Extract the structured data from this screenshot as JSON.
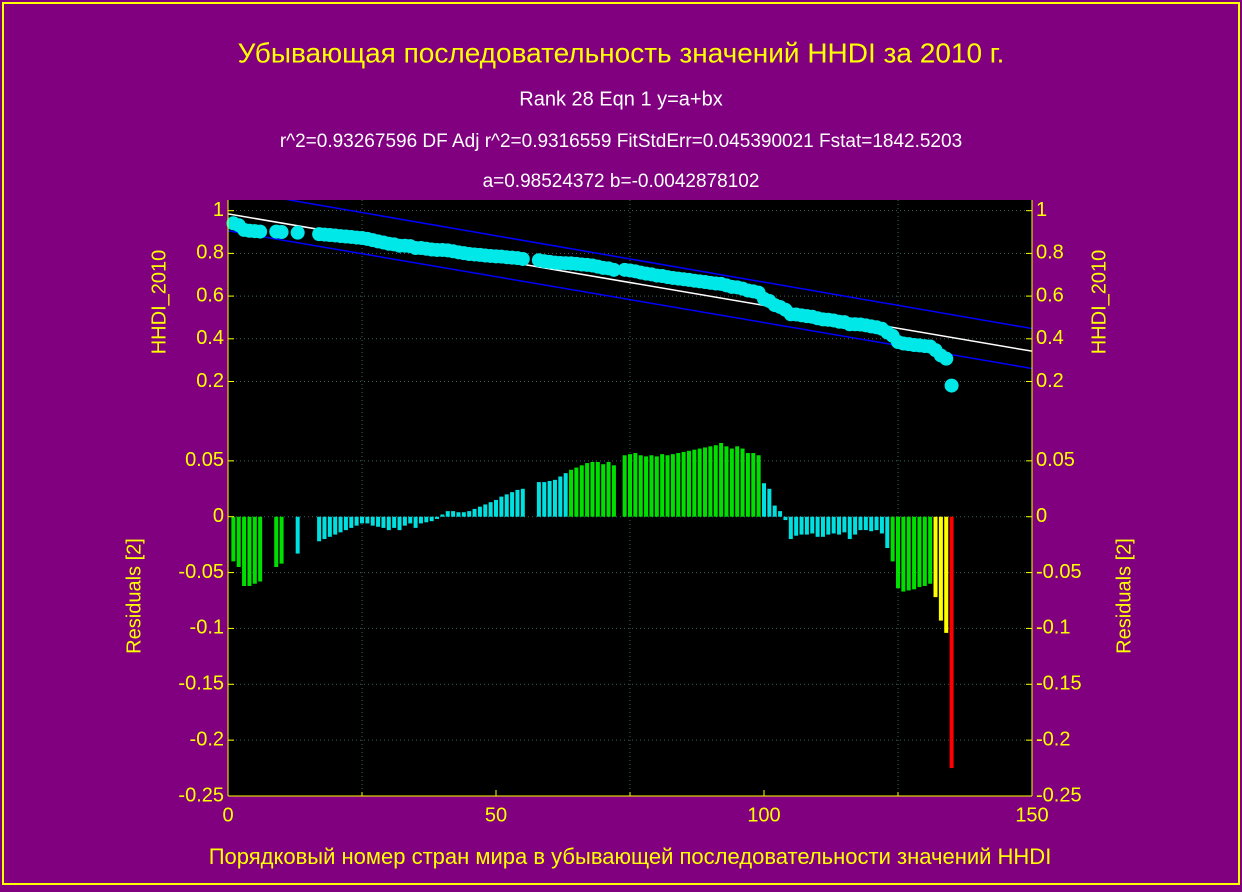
{
  "chart_data": [
    {
      "type": "scatter",
      "title": "Убывающая последовательность значений HHDI за 2010 г.",
      "subtitles": [
        "Rank 28  Eqn 1  y=a+bx",
        "r^2=0.93267596  DF Adj r^2=0.9316559  FitStdErr=0.045390021  Fstat=1842.5203",
        "a=0.98524372 b=-0.0042878102"
      ],
      "x_label": "Порядковый номер  стран мира в убывающей последовательности значений HHDI",
      "y_label": "HHDI_2010",
      "color": "#00e8e8",
      "xlim": [
        0,
        150
      ],
      "ylim": [
        0.09,
        1.05
      ],
      "yticks": [
        0.2,
        0.4,
        0.6,
        0.8,
        1
      ],
      "fit_line": {
        "color": "#ffffff",
        "x": [
          0,
          150
        ],
        "y": [
          0.985,
          0.342
        ]
      },
      "bands": {
        "color": "#0000ff",
        "upper": {
          "x": [
            0,
            150
          ],
          "y": [
            1.1,
            0.448
          ]
        },
        "lower": {
          "x": [
            0,
            150
          ],
          "y": [
            0.906,
            0.261
          ]
        }
      },
      "x": [
        1,
        2,
        3,
        4,
        5,
        6,
        9,
        10,
        13,
        17,
        18,
        19,
        20,
        21,
        22,
        23,
        24,
        25,
        26,
        27,
        28,
        29,
        30,
        31,
        32,
        33,
        34,
        35,
        36,
        37,
        38,
        39,
        40,
        41,
        42,
        43,
        44,
        45,
        46,
        47,
        48,
        49,
        50,
        51,
        52,
        53,
        54,
        55,
        58,
        59,
        60,
        61,
        62,
        63,
        64,
        65,
        66,
        67,
        68,
        69,
        70,
        71,
        72,
        74,
        75,
        76,
        77,
        78,
        79,
        80,
        81,
        82,
        83,
        84,
        85,
        86,
        87,
        88,
        89,
        90,
        91,
        92,
        93,
        94,
        95,
        96,
        97,
        98,
        99,
        100,
        101,
        102,
        103,
        104,
        105,
        106,
        107,
        108,
        109,
        110,
        111,
        112,
        113,
        114,
        115,
        116,
        117,
        118,
        119,
        120,
        121,
        122,
        123,
        124,
        125,
        126,
        127,
        128,
        129,
        130,
        131,
        132,
        133,
        134,
        135
      ],
      "y": [
        0.941,
        0.932,
        0.91,
        0.906,
        0.904,
        0.902,
        0.902,
        0.9,
        0.897,
        0.89,
        0.888,
        0.886,
        0.884,
        0.881,
        0.879,
        0.877,
        0.874,
        0.872,
        0.868,
        0.862,
        0.856,
        0.851,
        0.845,
        0.842,
        0.836,
        0.836,
        0.834,
        0.825,
        0.825,
        0.822,
        0.818,
        0.816,
        0.816,
        0.814,
        0.81,
        0.805,
        0.801,
        0.797,
        0.795,
        0.793,
        0.79,
        0.788,
        0.786,
        0.785,
        0.782,
        0.78,
        0.778,
        0.774,
        0.768,
        0.763,
        0.76,
        0.757,
        0.755,
        0.754,
        0.753,
        0.751,
        0.748,
        0.746,
        0.743,
        0.738,
        0.732,
        0.73,
        0.723,
        0.723,
        0.72,
        0.716,
        0.71,
        0.705,
        0.702,
        0.696,
        0.694,
        0.689,
        0.685,
        0.682,
        0.679,
        0.676,
        0.672,
        0.669,
        0.666,
        0.662,
        0.659,
        0.657,
        0.65,
        0.643,
        0.641,
        0.635,
        0.626,
        0.622,
        0.616,
        0.587,
        0.577,
        0.558,
        0.549,
        0.536,
        0.515,
        0.514,
        0.51,
        0.506,
        0.503,
        0.496,
        0.491,
        0.489,
        0.486,
        0.48,
        0.478,
        0.468,
        0.468,
        0.467,
        0.463,
        0.458,
        0.454,
        0.447,
        0.43,
        0.414,
        0.385,
        0.378,
        0.375,
        0.371,
        0.369,
        0.366,
        0.364,
        0.347,
        0.322,
        0.307,
        0.181
      ]
    },
    {
      "type": "bar",
      "y_label": "Residuals [2]",
      "xlim": [
        0,
        150
      ],
      "xticks": [
        0,
        50,
        100,
        150
      ],
      "xminor": [
        25,
        75,
        125
      ],
      "ylim": [
        -0.25,
        0.1
      ],
      "yticks": [
        0.05,
        0,
        -0.05,
        -0.1,
        -0.15,
        -0.2,
        -0.25
      ],
      "x": [
        1,
        2,
        3,
        4,
        5,
        6,
        9,
        10,
        13,
        17,
        18,
        19,
        20,
        21,
        22,
        23,
        24,
        25,
        26,
        27,
        28,
        29,
        30,
        31,
        32,
        33,
        34,
        35,
        36,
        37,
        38,
        39,
        40,
        41,
        42,
        43,
        44,
        45,
        46,
        47,
        48,
        49,
        50,
        51,
        52,
        53,
        54,
        55,
        58,
        59,
        60,
        61,
        62,
        63,
        64,
        65,
        66,
        67,
        68,
        69,
        70,
        71,
        72,
        74,
        75,
        76,
        77,
        78,
        79,
        80,
        81,
        82,
        83,
        84,
        85,
        86,
        87,
        88,
        89,
        90,
        91,
        92,
        93,
        94,
        95,
        96,
        97,
        98,
        99,
        100,
        101,
        102,
        103,
        104,
        105,
        106,
        107,
        108,
        109,
        110,
        111,
        112,
        113,
        114,
        115,
        116,
        117,
        118,
        119,
        120,
        121,
        122,
        123,
        124,
        125,
        126,
        127,
        128,
        129,
        130,
        131,
        132,
        133,
        134,
        135
      ],
      "values": [
        -0.04,
        -0.045,
        -0.062,
        -0.062,
        -0.06,
        -0.058,
        -0.045,
        -0.042,
        -0.033,
        -0.022,
        -0.02,
        -0.018,
        -0.016,
        -0.014,
        -0.012,
        -0.01,
        -0.008,
        -0.006,
        -0.006,
        -0.008,
        -0.009,
        -0.01,
        -0.012,
        -0.01,
        -0.012,
        -0.008,
        -0.006,
        -0.01,
        -0.006,
        -0.005,
        -0.004,
        -0.002,
        0.002,
        0.005,
        0.005,
        0.004,
        0.004,
        0.005,
        0.007,
        0.009,
        0.011,
        0.013,
        0.015,
        0.018,
        0.02,
        0.022,
        0.024,
        0.025,
        0.031,
        0.031,
        0.032,
        0.033,
        0.036,
        0.039,
        0.042,
        0.044,
        0.046,
        0.048,
        0.049,
        0.049,
        0.047,
        0.049,
        0.046,
        0.055,
        0.056,
        0.057,
        0.055,
        0.054,
        0.055,
        0.054,
        0.056,
        0.055,
        0.056,
        0.057,
        0.058,
        0.059,
        0.06,
        0.061,
        0.062,
        0.063,
        0.064,
        0.066,
        0.063,
        0.061,
        0.063,
        0.061,
        0.057,
        0.057,
        0.055,
        0.03,
        0.025,
        0.01,
        0.005,
        -0.003,
        -0.02,
        -0.017,
        -0.016,
        -0.016,
        -0.015,
        -0.018,
        -0.018,
        -0.016,
        -0.015,
        -0.016,
        -0.014,
        -0.02,
        -0.016,
        -0.012,
        -0.012,
        -0.013,
        -0.012,
        -0.015,
        -0.028,
        -0.04,
        -0.064,
        -0.067,
        -0.066,
        -0.065,
        -0.063,
        -0.062,
        -0.06,
        -0.072,
        -0.093,
        -0.104,
        -0.225
      ],
      "colors": [
        "#00e000",
        "#00e000",
        "#00e000",
        "#00e000",
        "#00e000",
        "#00e000",
        "#00e000",
        "#00e000",
        "#00e0e0",
        "#00e0e0",
        "#00e0e0",
        "#00e0e0",
        "#00e0e0",
        "#00e0e0",
        "#00e0e0",
        "#00e0e0",
        "#00e0e0",
        "#00e0e0",
        "#00e0e0",
        "#00e0e0",
        "#00e0e0",
        "#00e0e0",
        "#00e0e0",
        "#00e0e0",
        "#00e0e0",
        "#00e0e0",
        "#00e0e0",
        "#00e0e0",
        "#00e0e0",
        "#00e0e0",
        "#00e0e0",
        "#00e0e0",
        "#00e0e0",
        "#00e0e0",
        "#00e0e0",
        "#00e0e0",
        "#00e0e0",
        "#00e0e0",
        "#00e0e0",
        "#00e0e0",
        "#00e0e0",
        "#00e0e0",
        "#00e0e0",
        "#00e0e0",
        "#00e0e0",
        "#00e0e0",
        "#00e0e0",
        "#00e0e0",
        "#00e0e0",
        "#00e0e0",
        "#00e0e0",
        "#00e0e0",
        "#00e0e0",
        "#00e0e0",
        "#00e000",
        "#00e000",
        "#00e000",
        "#00e000",
        "#00e000",
        "#00e000",
        "#00e000",
        "#00e000",
        "#00e000",
        "#00e000",
        "#00e000",
        "#00e000",
        "#00e000",
        "#00e000",
        "#00e000",
        "#00e000",
        "#00e000",
        "#00e000",
        "#00e000",
        "#00e000",
        "#00e000",
        "#00e000",
        "#00e000",
        "#00e000",
        "#00e000",
        "#00e000",
        "#00e000",
        "#00e000",
        "#00e000",
        "#00e000",
        "#00e000",
        "#00e000",
        "#00e000",
        "#00e000",
        "#00e000",
        "#00e0e0",
        "#00e0e0",
        "#00e0e0",
        "#00e0e0",
        "#00e0e0",
        "#00e0e0",
        "#00e0e0",
        "#00e0e0",
        "#00e0e0",
        "#00e0e0",
        "#00e0e0",
        "#00e0e0",
        "#00e0e0",
        "#00e0e0",
        "#00e0e0",
        "#00e0e0",
        "#00e0e0",
        "#00e0e0",
        "#00e0e0",
        "#00e0e0",
        "#00e0e0",
        "#00e0e0",
        "#00e0e0",
        "#00e0e0",
        "#00e000",
        "#00e000",
        "#00e000",
        "#00e000",
        "#00e000",
        "#00e000",
        "#00e000",
        "#00e000",
        "#ffff00",
        "#ffff00",
        "#ffff00",
        "#ff0000"
      ]
    }
  ]
}
